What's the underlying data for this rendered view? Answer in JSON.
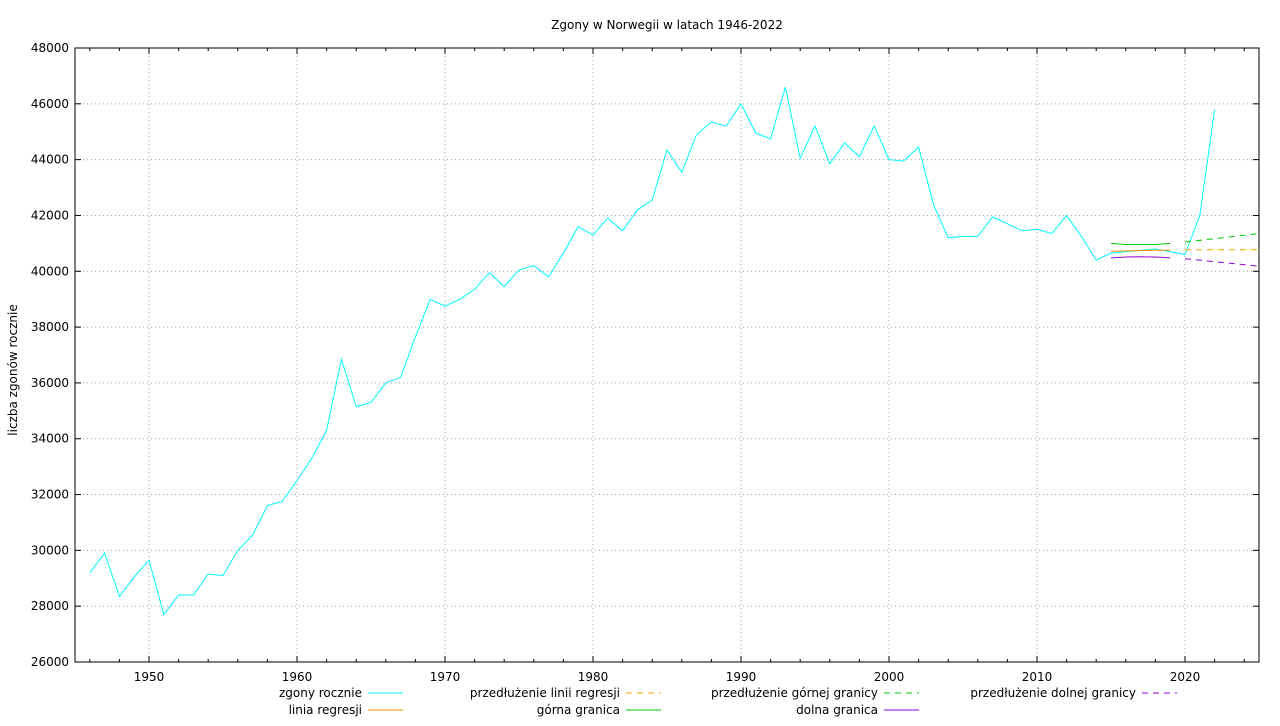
{
  "chart_data": {
    "type": "line",
    "title": "Zgony w Norwegii w latach 1946-2022",
    "xlabel": "",
    "ylabel": "liczba zgonów rocznie",
    "xlim": [
      1945,
      2025
    ],
    "ylim": [
      26000,
      48000
    ],
    "x_ticks": [
      1950,
      1960,
      1970,
      1980,
      1990,
      2000,
      2010,
      2020
    ],
    "y_ticks": [
      26000,
      28000,
      30000,
      32000,
      34000,
      36000,
      38000,
      40000,
      42000,
      44000,
      46000,
      48000
    ],
    "grid": true,
    "legend_position": "bottom",
    "series": [
      {
        "name": "zgony rocznie",
        "color": "#00ffff",
        "dash": "solid",
        "x": [
          1946,
          1947,
          1948,
          1949,
          1950,
          1951,
          1952,
          1953,
          1954,
          1955,
          1956,
          1957,
          1958,
          1959,
          1960,
          1961,
          1962,
          1963,
          1964,
          1965,
          1966,
          1967,
          1968,
          1969,
          1970,
          1971,
          1972,
          1973,
          1974,
          1975,
          1976,
          1977,
          1978,
          1979,
          1980,
          1981,
          1982,
          1983,
          1984,
          1985,
          1986,
          1987,
          1988,
          1989,
          1990,
          1991,
          1992,
          1993,
          1994,
          1995,
          1996,
          1997,
          1998,
          1999,
          2000,
          2001,
          2002,
          2003,
          2004,
          2005,
          2006,
          2007,
          2008,
          2009,
          2010,
          2011,
          2012,
          2013,
          2014,
          2015,
          2016,
          2017,
          2018,
          2019,
          2020,
          2021,
          2022
        ],
        "y": [
          29200,
          29900,
          28350,
          29050,
          29650,
          27700,
          28400,
          28400,
          29150,
          29100,
          30000,
          30550,
          31600,
          31750,
          32500,
          33300,
          34300,
          36850,
          35150,
          35300,
          36000,
          36200,
          37650,
          39000,
          38750,
          39000,
          39350,
          39950,
          39450,
          40050,
          40200,
          39800,
          40650,
          41600,
          41300,
          41900,
          41450,
          42200,
          42550,
          44350,
          43550,
          44900,
          45350,
          45200,
          46000,
          44950,
          44750,
          46600,
          44050,
          45200,
          43850,
          44600,
          44100,
          45200,
          44000,
          43950,
          44450,
          42400,
          41200,
          41250,
          41250,
          41950,
          41700,
          41450,
          41500,
          41350,
          42000,
          41250,
          40400,
          40650,
          40700,
          40750,
          40800,
          40700,
          40600,
          42000,
          45800
        ]
      },
      {
        "name": "linia regresji",
        "color": "#ff8c00",
        "dash": "solid",
        "x": [
          2015,
          2016,
          2017,
          2018,
          2019
        ],
        "y": [
          40720,
          40730,
          40740,
          40750,
          40760
        ]
      },
      {
        "name": "przedłużenie linii regresji",
        "color": "#ffa500",
        "dash": "dashed",
        "x": [
          2020,
          2025
        ],
        "y": [
          40770,
          40770
        ]
      },
      {
        "name": "górna granica",
        "color": "#00cc00",
        "dash": "solid",
        "x": [
          2015,
          2016,
          2017,
          2018,
          2019
        ],
        "y": [
          41000,
          40960,
          40960,
          40960,
          41000
        ]
      },
      {
        "name": "przedłużenie górnej granicy",
        "color": "#00cc00",
        "dash": "dashed",
        "x": [
          2020,
          2025
        ],
        "y": [
          41050,
          41350
        ]
      },
      {
        "name": "dolna granica",
        "color": "#9400d3",
        "dash": "solid",
        "x": [
          2015,
          2016,
          2017,
          2018,
          2019
        ],
        "y": [
          40480,
          40510,
          40520,
          40510,
          40480
        ]
      },
      {
        "name": "przedłużenie dolnej granicy",
        "color": "#9400d3",
        "dash": "dashed",
        "x": [
          2020,
          2025
        ],
        "y": [
          40450,
          40180
        ]
      }
    ]
  }
}
